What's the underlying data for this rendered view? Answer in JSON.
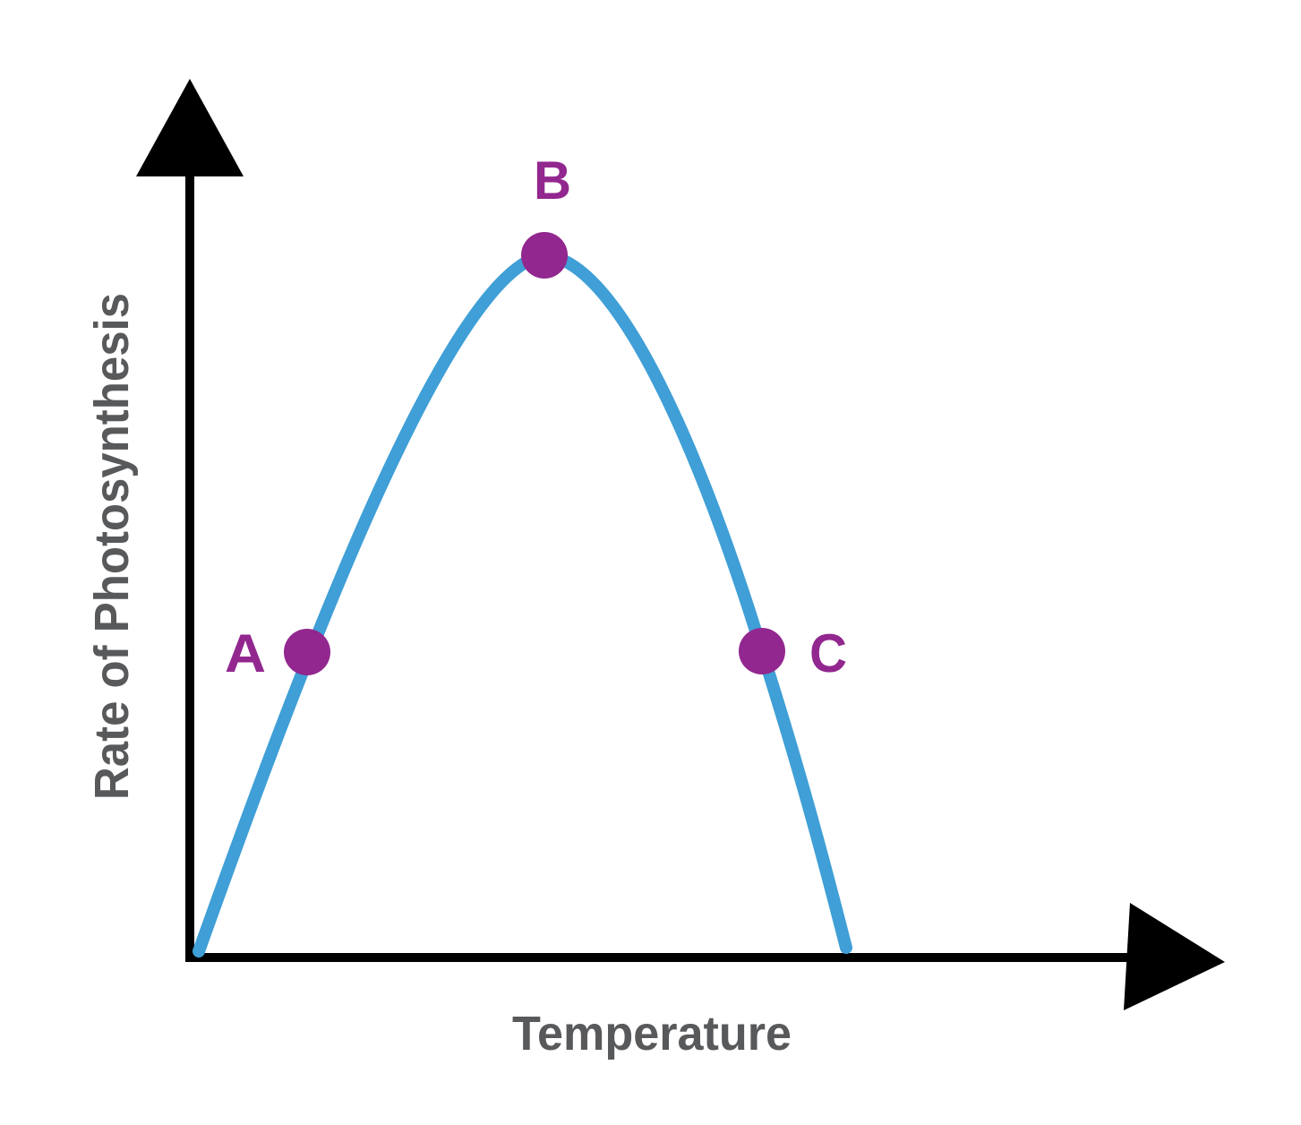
{
  "x_axis": {
    "label": "Temperature"
  },
  "y_axis": {
    "label": "Rate of Photosynthesis"
  },
  "points": [
    {
      "label": "A"
    },
    {
      "label": "B"
    },
    {
      "label": "C"
    }
  ]
}
